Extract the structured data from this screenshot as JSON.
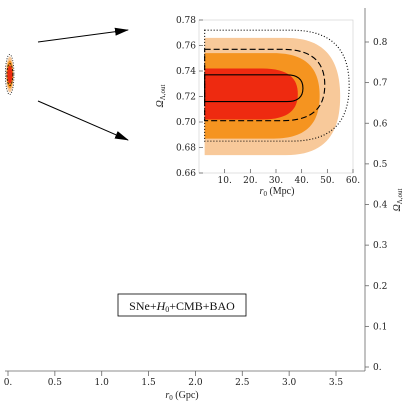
{
  "chart_data": [
    {
      "type": "contour",
      "role": "main",
      "xlabel_main": "r",
      "xlabel_sub": "0",
      "xlabel_unit": " (Gpc)",
      "ylabel_main": "Ω",
      "ylabel_sub": "Λ,out",
      "xlim": [
        0,
        3.5
      ],
      "ylim": [
        0,
        0.85
      ],
      "x_ticks": [
        0.0,
        0.5,
        1.0,
        1.5,
        2.0,
        2.5,
        3.0,
        3.5
      ],
      "x_tick_labels": [
        "0.",
        "0.5",
        "1.0",
        "1.5",
        "2.0",
        "2.5",
        "3.0",
        "3.5"
      ],
      "y_ticks": [
        0.0,
        0.1,
        0.2,
        0.3,
        0.4,
        0.5,
        0.6,
        0.7,
        0.8
      ],
      "y_tick_labels": [
        "0.",
        "0.1",
        "0.2",
        "0.3",
        "0.4",
        "0.5",
        "0.6",
        "0.7",
        "0.8"
      ],
      "y_axis_side": "right",
      "legend": "SNe+H0+CMB+BAO",
      "legend_parts": {
        "pre": "SNe+",
        "H": "H",
        "sub": "0",
        "post": "+CMB+BAO"
      },
      "contour_center": {
        "x": 0.02,
        "y": 0.72
      },
      "contour_colors": [
        "#f8c99a",
        "#f59420",
        "#ee2a10"
      ]
    },
    {
      "type": "contour",
      "role": "inset",
      "xlabel_main": "r",
      "xlabel_sub": "0",
      "xlabel_unit": " (Mpc)",
      "ylabel_main": "Ω",
      "ylabel_sub": "Λ,out",
      "xlim": [
        0,
        60
      ],
      "ylim": [
        0.66,
        0.78
      ],
      "x_ticks": [
        10,
        20,
        30,
        40,
        50,
        60
      ],
      "x_tick_labels": [
        "10.",
        "20.",
        "30.",
        "40.",
        "50.",
        "60."
      ],
      "y_ticks": [
        0.66,
        0.68,
        0.7,
        0.72,
        0.74,
        0.76,
        0.78
      ],
      "y_tick_labels": [
        "0.66",
        "0.68",
        "0.70",
        "0.72",
        "0.74",
        "0.76",
        "0.78"
      ],
      "regions": [
        {
          "level": "outer",
          "color": "#f8c99a",
          "r0_max": 55.0,
          "omega_range": [
            0.674,
            0.766
          ]
        },
        {
          "level": "middle",
          "color": "#f59420",
          "r0_max": 47.0,
          "omega_range": [
            0.687,
            0.754
          ]
        },
        {
          "level": "inner",
          "color": "#ee2a10",
          "r0_max": 38.5,
          "omega_range": [
            0.702,
            0.742
          ]
        }
      ],
      "lines": [
        {
          "style": "solid",
          "r0_max": 40.5,
          "omega_range": [
            0.716,
            0.737
          ]
        },
        {
          "style": "dashed",
          "r0_max": 49.0,
          "omega_range": [
            0.701,
            0.757
          ]
        },
        {
          "style": "dotted",
          "r0_max": 58.5,
          "omega_range": [
            0.685,
            0.772
          ]
        }
      ],
      "inset_frame_color": "#dddddd"
    }
  ]
}
